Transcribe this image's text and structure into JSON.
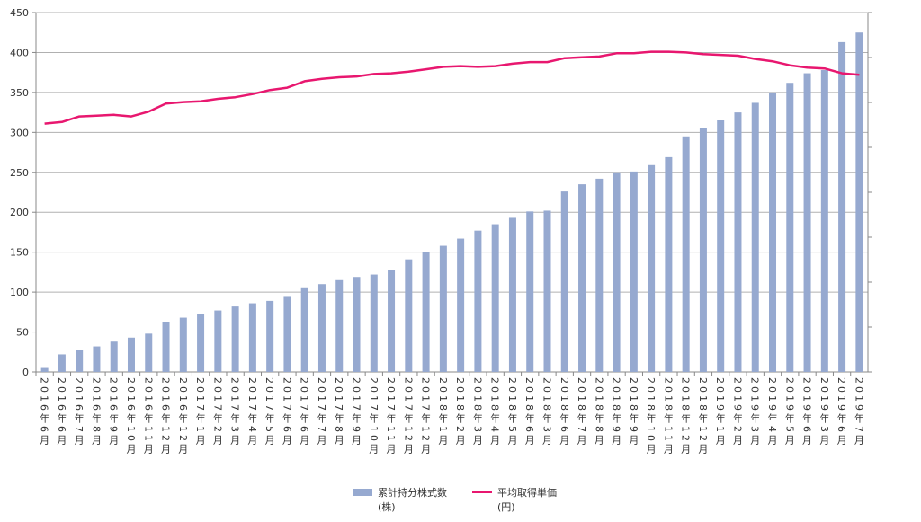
{
  "chart_data": {
    "type": "bar+line",
    "title": "",
    "xlabel": "",
    "ylabel": "",
    "ylim": [
      0,
      450
    ],
    "yticks": [
      0,
      50,
      100,
      150,
      200,
      250,
      300,
      350,
      400,
      450
    ],
    "grid": true,
    "legend_position": "bottom",
    "categories": [
      "2016年6月",
      "2016年6月",
      "2016年7月",
      "2016年8月",
      "2016年9月",
      "2016年10月",
      "2016年11月",
      "2016年12月",
      "2016年12月",
      "2017年1月",
      "2017年2月",
      "2017年3月",
      "2017年4月",
      "2017年5月",
      "2017年6月",
      "2017年6月",
      "2017年7月",
      "2017年8月",
      "2017年9月",
      "2017年10月",
      "2017年11月",
      "2017年12月",
      "2017年12月",
      "2018年1月",
      "2018年2月",
      "2018年3月",
      "2018年4月",
      "2018年5月",
      "2018年6月",
      "2018年3月",
      "2018年6月",
      "2018年7月",
      "2018年8月",
      "2018年9月",
      "2018年9月",
      "2018年10月",
      "2018年11月",
      "2018年12月",
      "2018年12月",
      "2019年1月",
      "2019年2月",
      "2019年3月",
      "2019年4月",
      "2019年5月",
      "2019年6月",
      "2019年3月",
      "2019年6月",
      "2019年7月"
    ],
    "series": [
      {
        "name": "累計持分株式数",
        "unit": "(株)",
        "type": "bar",
        "color": "#96a9d0",
        "values": [
          5,
          22,
          27,
          32,
          38,
          43,
          48,
          63,
          68,
          73,
          77,
          82,
          86,
          89,
          94,
          106,
          110,
          115,
          119,
          122,
          128,
          141,
          150,
          158,
          167,
          177,
          185,
          193,
          201,
          202,
          226,
          235,
          242,
          250,
          251,
          259,
          269,
          295,
          305,
          315,
          325,
          337,
          350,
          362,
          374,
          378,
          413,
          425
        ]
      },
      {
        "name": "平均取得単価",
        "unit": "(円)",
        "type": "line",
        "color": "#e8176f",
        "values": [
          311,
          313,
          320,
          321,
          322,
          320,
          326,
          336,
          338,
          339,
          342,
          344,
          348,
          353,
          356,
          364,
          367,
          369,
          370,
          373,
          374,
          376,
          379,
          382,
          383,
          382,
          383,
          386,
          388,
          388,
          393,
          394,
          395,
          399,
          399,
          401,
          401,
          400,
          398,
          397,
          396,
          392,
          389,
          384,
          381,
          380,
          374,
          372
        ]
      }
    ]
  }
}
